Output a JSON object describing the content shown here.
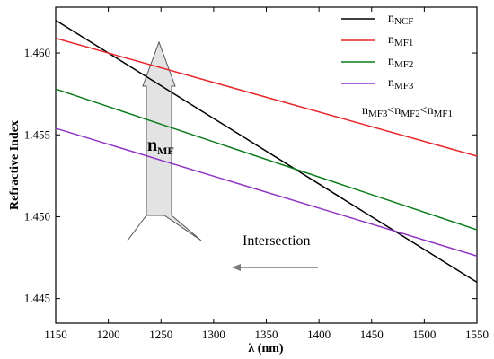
{
  "chart_data": {
    "type": "line",
    "xlabel": "λ (nm)",
    "ylabel": "Refractive Index",
    "xlim": [
      1150,
      1550
    ],
    "ylim": [
      1.4435,
      1.4628
    ],
    "xticks": [
      1150,
      1200,
      1250,
      1300,
      1350,
      1400,
      1450,
      1500,
      1550
    ],
    "yticks": [
      1.445,
      1.45,
      1.455,
      1.46
    ],
    "series": [
      {
        "id": "NCF",
        "name_base": "n",
        "name_sub": "NCF",
        "color": "#000000",
        "x": [
          1150,
          1550
        ],
        "y": [
          1.462,
          1.446
        ]
      },
      {
        "id": "MF1",
        "name_base": "n",
        "name_sub": "MF1",
        "color": "#e8262a",
        "x": [
          1150,
          1550
        ],
        "y": [
          1.4609,
          1.4537
        ]
      },
      {
        "id": "MF2",
        "name_base": "n",
        "name_sub": "MF2",
        "color": "#0b7d1b",
        "x": [
          1150,
          1550
        ],
        "y": [
          1.4578,
          1.4492
        ]
      },
      {
        "id": "MF3",
        "name_base": "n",
        "name_sub": "MF3",
        "color": "#8e35c4",
        "x": [
          1150,
          1550
        ],
        "y": [
          1.4554,
          1.4476
        ]
      }
    ],
    "legend_position": "top-right",
    "legend_relation": {
      "base": "n",
      "terms": [
        "MF3",
        "MF2",
        "MF1"
      ],
      "sep": "<"
    },
    "annotations": {
      "arrow_label_base": "n",
      "arrow_label_sub": "MF",
      "intersection_text": "Intersection"
    }
  }
}
